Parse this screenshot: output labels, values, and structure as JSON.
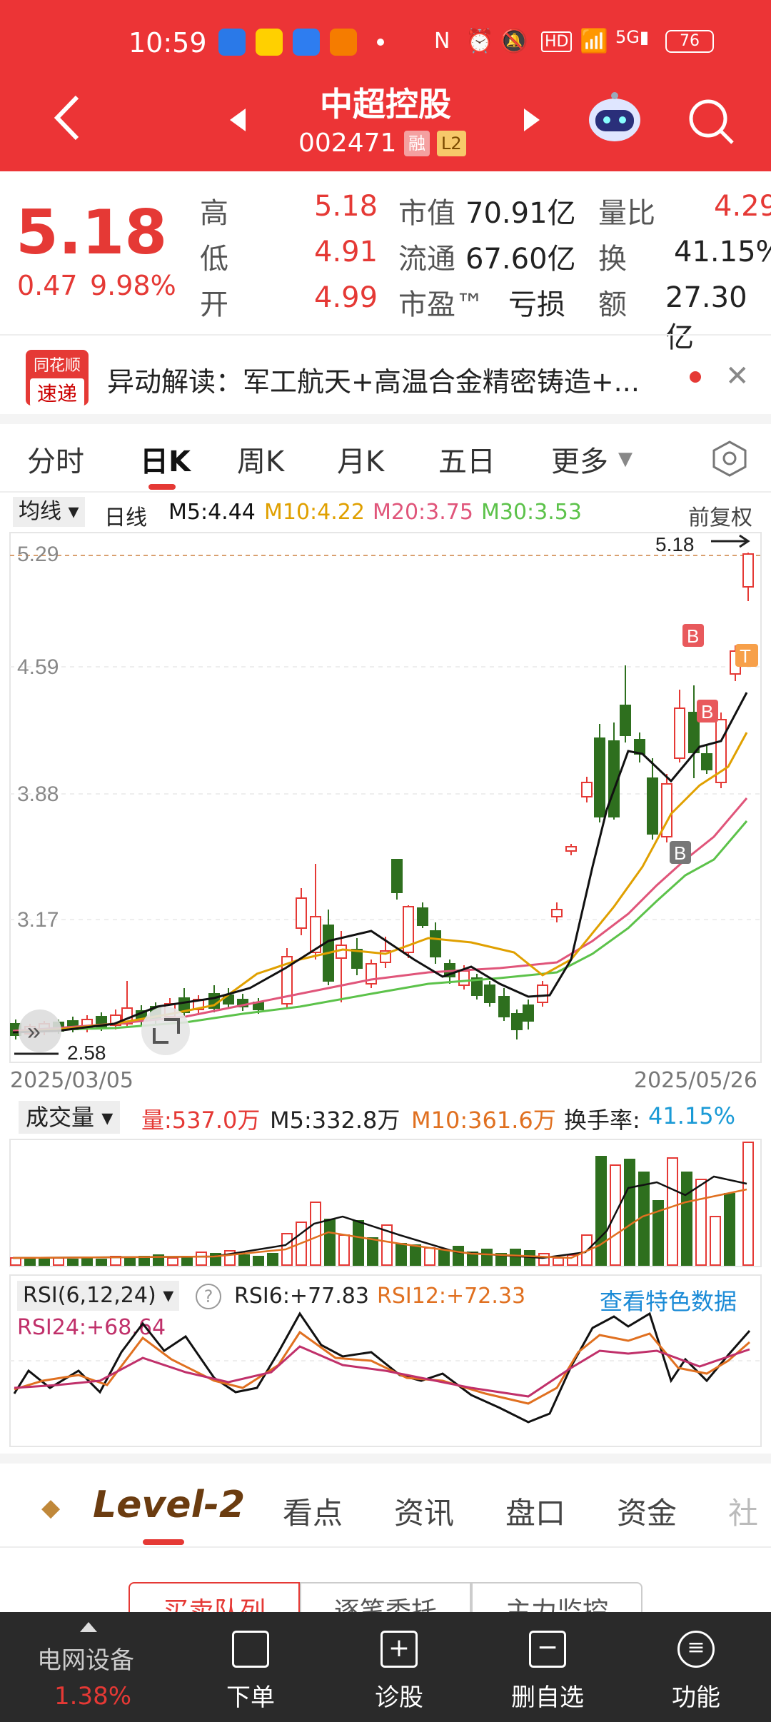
{
  "status_bar": {
    "time": "10:59",
    "battery": "76"
  },
  "header": {
    "title": "中超控股",
    "code": "002471",
    "tag1": "融",
    "tag2": "L2"
  },
  "quote": {
    "price": "5.18",
    "change": "0.47",
    "change_pct": "9.98%",
    "high_label": "高",
    "high": "5.18",
    "low_label": "低",
    "low": "4.91",
    "open_label": "开",
    "open": "4.99",
    "mcap_label": "市值",
    "mcap": "70.91亿",
    "float_label": "流通",
    "float": "67.60亿",
    "pe_label": "市盈™",
    "pe": "亏损",
    "vr_label": "量比",
    "vr": "4.29",
    "turnover_label": "换",
    "turnover": "41.15%",
    "amount_label": "额",
    "amount": "27.30亿"
  },
  "news": {
    "brand_top": "同花顺",
    "brand_bottom": "速递",
    "text": "异动解读：军工航天+高温合金精密铸造+..."
  },
  "tabs": [
    "分时",
    "日K",
    "周K",
    "月K",
    "五日",
    "更多"
  ],
  "ma_bar": {
    "selector": "均线",
    "period": "日线",
    "m5": "M5:4.44",
    "m10": "M10:4.22",
    "m20": "M20:3.75",
    "m30": "M30:3.53",
    "adjust": "前复权"
  },
  "kline": {
    "y_labels": [
      "5.29",
      "4.59",
      "3.88",
      "3.17"
    ],
    "max_label": "5.18",
    "min_label": "2.58",
    "start_date": "2025/03/05",
    "end_date": "2025/05/26",
    "markers": [
      "B",
      "B",
      "B",
      "T"
    ]
  },
  "volume_bar": {
    "selector": "成交量",
    "vol": "量:537.0万",
    "m5": "M5:332.8万",
    "m10": "M10:361.6万",
    "turnover_label": "换手率:",
    "turnover": "41.15%"
  },
  "rsi_bar": {
    "selector": "RSI(6,12,24)",
    "help": "?",
    "rsi6": "RSI6:+77.83",
    "rsi12": "RSI12:+72.33",
    "link": "查看特色数据",
    "rsi24": "RSI24:+68.64"
  },
  "sub_tabs": {
    "level2": "Level-2",
    "items": [
      "看点",
      "资讯",
      "盘口",
      "资金",
      "社"
    ]
  },
  "segment": [
    "买卖队列",
    "逐笔委托",
    "主力监控"
  ],
  "bottom_nav": {
    "index_name": "电网设备",
    "index_change": "1.38%",
    "items": [
      "下单",
      "诊股",
      "删自选",
      "功能"
    ]
  },
  "colors": {
    "up": "#e53935",
    "down": "#2e6f1e",
    "header": "#ec3436",
    "m5": "#111111",
    "m10": "#e0a000",
    "m20": "#e0557a",
    "m30": "#5cc24a"
  }
}
